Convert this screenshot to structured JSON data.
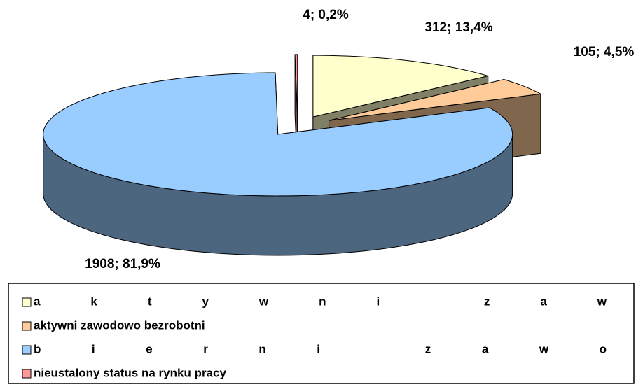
{
  "chart_data": {
    "type": "pie3d",
    "categories": [
      "aktywni zaw",
      "aktywni zawodowo bezrobotni",
      "bierni zawo",
      "nieustalony status na rynku pracy"
    ],
    "values": [
      312,
      105,
      1908,
      4
    ],
    "value_labels": [
      "312; 13,4%",
      "105; 4,5%",
      "1908; 81,9%",
      "4; 0,2%"
    ],
    "colors": [
      "#ffffcc",
      "#ffcc99",
      "#99ccff",
      "#ff9999"
    ],
    "legend": "bottom"
  }
}
